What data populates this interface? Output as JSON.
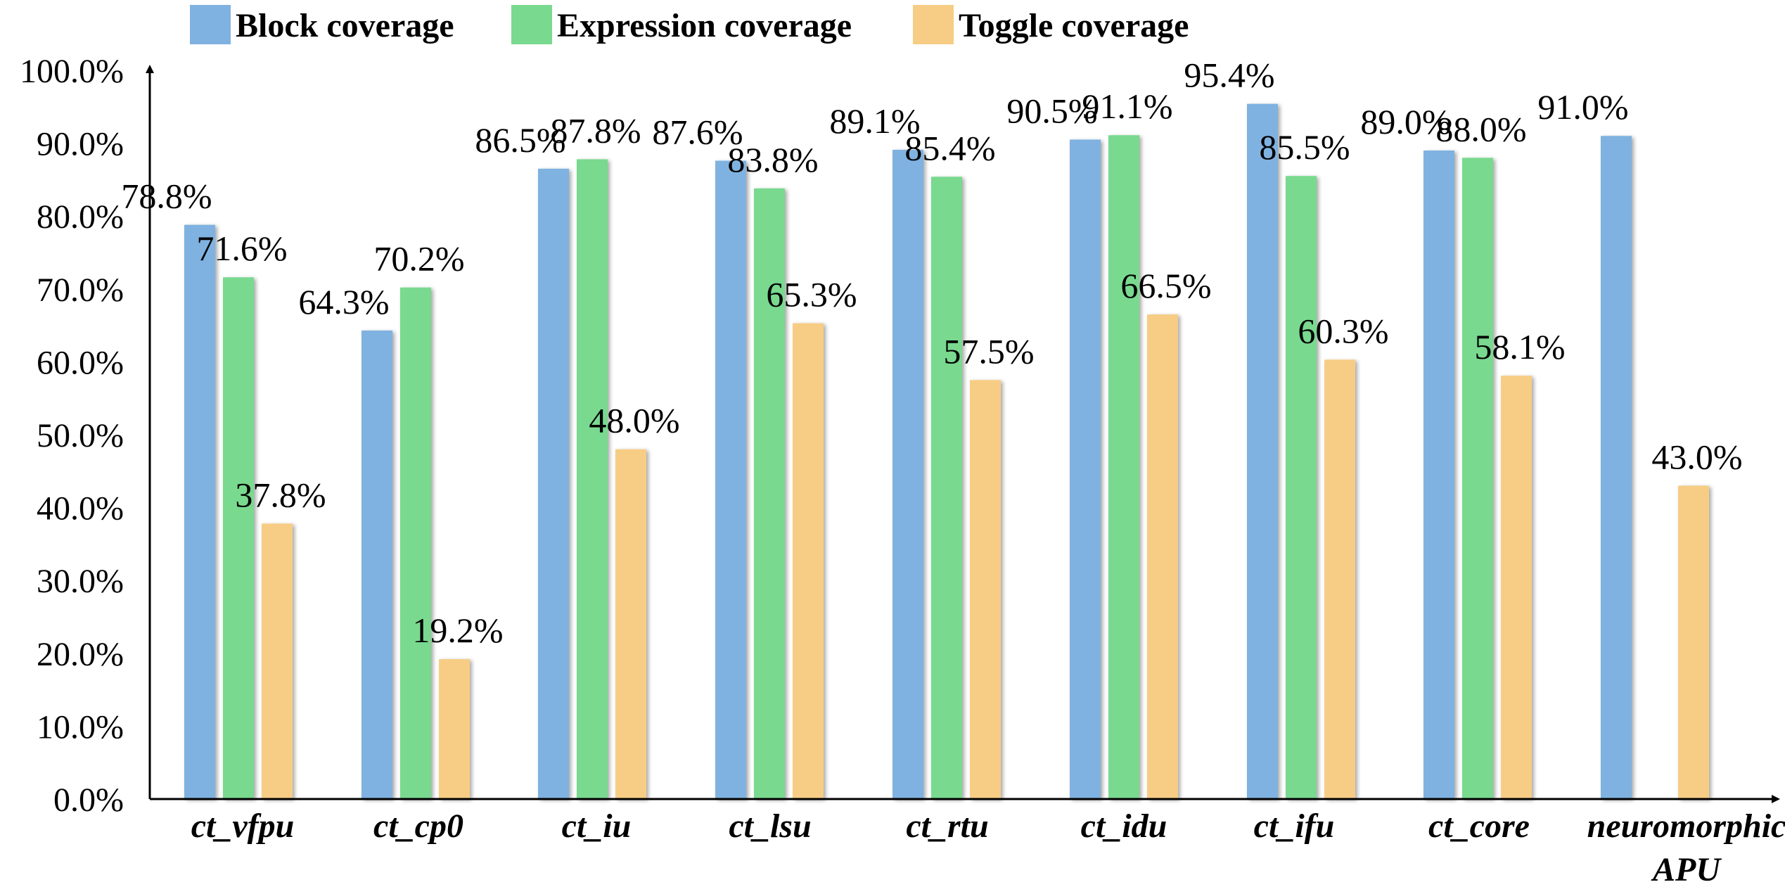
{
  "chart_data": {
    "type": "bar",
    "categories": [
      [
        "ct_vfpu"
      ],
      [
        "ct_cp0"
      ],
      [
        "ct_iu"
      ],
      [
        "ct_lsu"
      ],
      [
        "ct_rtu"
      ],
      [
        "ct_idu"
      ],
      [
        "ct_ifu"
      ],
      [
        "ct_core"
      ],
      [
        "neuromorphic",
        "APU"
      ]
    ],
    "series": [
      {
        "name": "Block coverage",
        "color": "#7fb2e0",
        "values": [
          78.8,
          64.3,
          86.5,
          87.6,
          89.1,
          90.5,
          95.4,
          89.0,
          91.0
        ],
        "labels": [
          "78.8%",
          "64.3%",
          "86.5%",
          "87.6%",
          "89.1%",
          "90.5%",
          "95.4%",
          "89.0%",
          "91.0%"
        ]
      },
      {
        "name": "Expression coverage",
        "color": "#79d98f",
        "values": [
          71.6,
          70.2,
          87.8,
          83.8,
          85.4,
          91.1,
          85.5,
          88.0,
          null
        ],
        "labels": [
          "71.6%",
          "70.2%",
          "87.8%",
          "83.8%",
          "85.4%",
          "91.1%",
          "85.5%",
          "88.0%",
          null
        ]
      },
      {
        "name": "Toggle coverage",
        "color": "#f7cd85",
        "values": [
          37.8,
          19.2,
          48.0,
          65.3,
          57.5,
          66.5,
          60.3,
          58.1,
          43.0
        ],
        "labels": [
          "37.8%",
          "19.2%",
          "48.0%",
          "65.3%",
          "57.5%",
          "66.5%",
          "60.3%",
          "58.1%",
          "43.0%"
        ]
      }
    ],
    "yticks": [
      "0.0%",
      "10.0%",
      "20.0%",
      "30.0%",
      "40.0%",
      "50.0%",
      "60.0%",
      "70.0%",
      "80.0%",
      "90.0%",
      "100.0%"
    ],
    "ylim": [
      0,
      100
    ],
    "legend_position": "top",
    "grid": false,
    "title": "",
    "xlabel": "",
    "ylabel": ""
  }
}
